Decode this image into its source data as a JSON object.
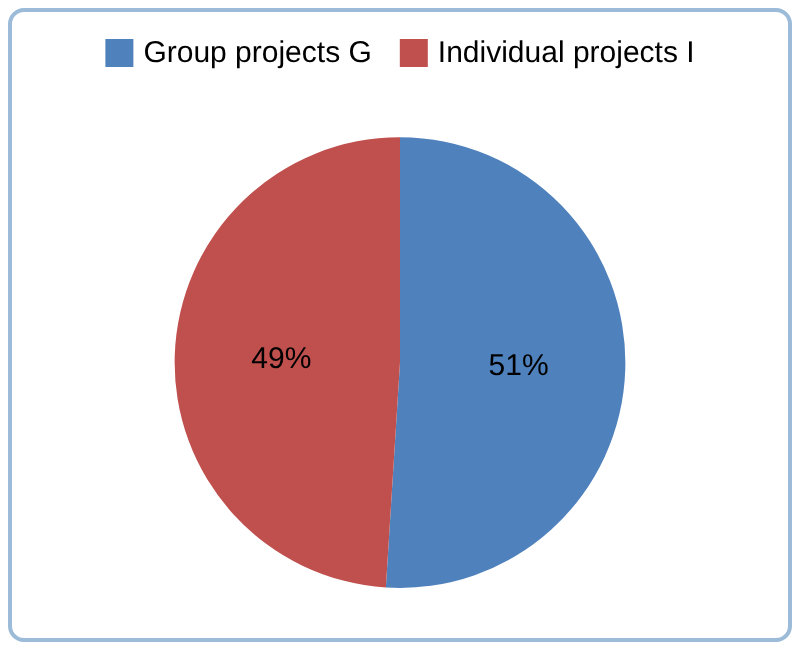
{
  "chart_data": {
    "type": "pie",
    "categories": [
      "Group projects G",
      "Individual projects I"
    ],
    "values": [
      51,
      49
    ],
    "colors": [
      "#4f81bd",
      "#c0504d"
    ],
    "value_labels": [
      "51%",
      "49%"
    ],
    "legend": "top"
  }
}
